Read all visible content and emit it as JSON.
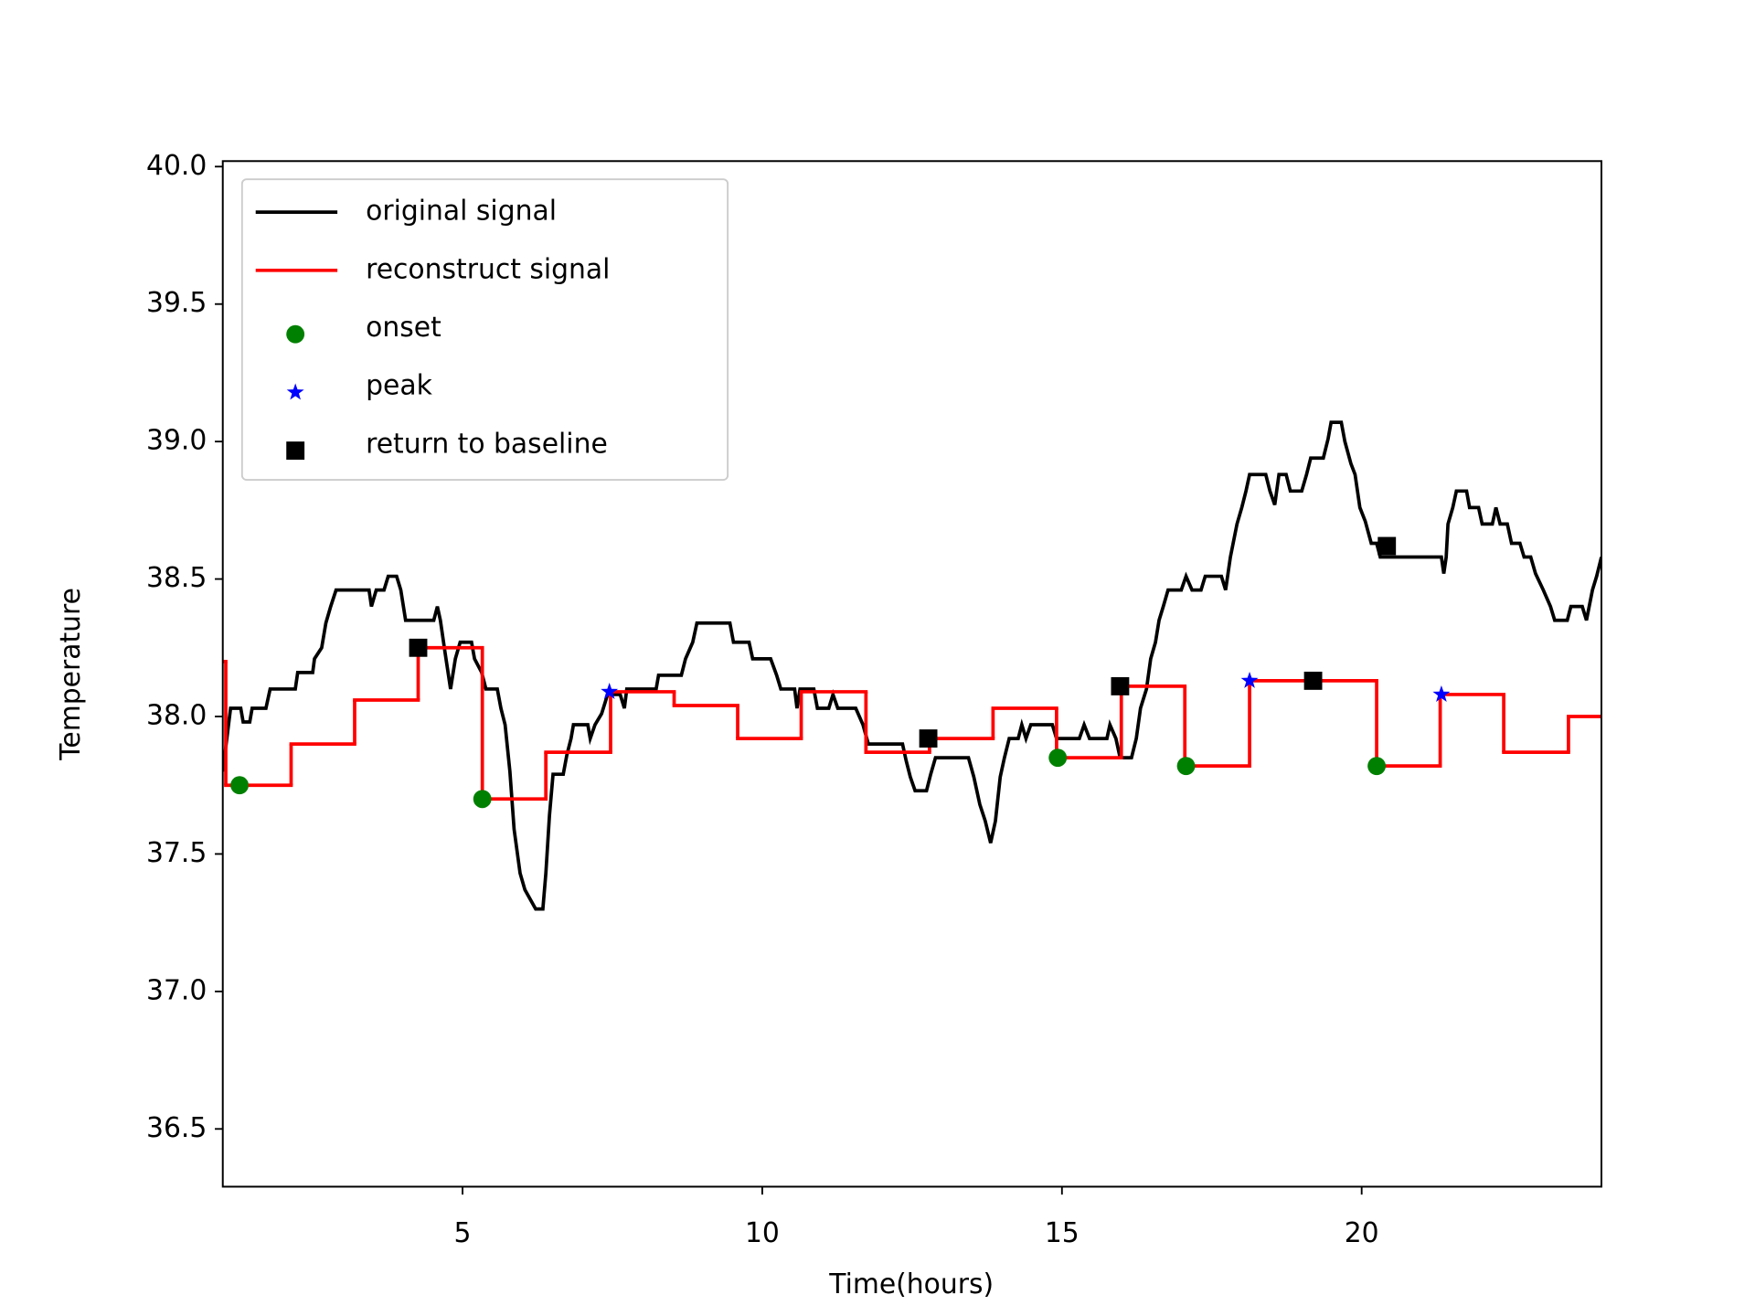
{
  "chart_data": {
    "type": "line",
    "x_label": "Time(hours)",
    "y_label": "Temperature",
    "xlim": [
      1,
      24
    ],
    "ylim": [
      36.29,
      40.02
    ],
    "xticks": [
      5,
      10,
      15,
      20
    ],
    "yticks": [
      36.5,
      {
        "value": 37,
        "label": "37.0"
      },
      37.5,
      {
        "value": 38,
        "label": "38.0"
      },
      38.5,
      {
        "value": 39,
        "label": "39.0"
      },
      39.5,
      {
        "value": 40,
        "label": "40.0"
      }
    ],
    "legend": "upper left",
    "series": [
      {
        "name": "original signal",
        "color": "#000000",
        "type": "line",
        "x": [
          1.0,
          1.13,
          1.3,
          1.34,
          1.45,
          1.49,
          1.72,
          1.79,
          2.21,
          2.25,
          2.5,
          2.53,
          2.65,
          2.72,
          2.8,
          2.89,
          3.44,
          3.48,
          3.56,
          3.69,
          3.76,
          3.9,
          3.97,
          4.05,
          4.52,
          4.58,
          4.63,
          4.71,
          4.8,
          4.88,
          4.96,
          5.15,
          5.2,
          5.32,
          5.39,
          5.58,
          5.64,
          5.71,
          5.79,
          5.86,
          5.96,
          6.04,
          6.22,
          6.34,
          6.39,
          6.45,
          6.51,
          6.68,
          6.74,
          6.81,
          6.85,
          7.09,
          7.13,
          7.21,
          7.32,
          7.42,
          7.63,
          7.7,
          7.74,
          8.23,
          8.27,
          8.65,
          8.72,
          8.84,
          8.91,
          9.46,
          9.52,
          9.78,
          9.84,
          10.14,
          10.24,
          10.31,
          10.54,
          10.58,
          10.63,
          10.86,
          10.92,
          11.11,
          11.18,
          11.26,
          11.56,
          11.68,
          11.77,
          12.34,
          12.4,
          12.47,
          12.55,
          12.74,
          12.81,
          12.89,
          13.44,
          13.53,
          13.63,
          13.72,
          13.81,
          13.89,
          13.97,
          14.04,
          14.12,
          14.27,
          14.33,
          14.4,
          14.48,
          14.84,
          14.91,
          15.29,
          15.37,
          15.46,
          15.75,
          15.8,
          15.9,
          15.97,
          16.16,
          16.24,
          16.31,
          16.41,
          16.48,
          16.56,
          16.62,
          16.69,
          16.77,
          16.99,
          17.07,
          17.17,
          17.32,
          17.39,
          17.66,
          17.73,
          17.81,
          17.92,
          18.0,
          18.07,
          18.13,
          18.4,
          18.47,
          18.55,
          18.62,
          18.74,
          18.81,
          19.0,
          19.08,
          19.15,
          19.36,
          19.44,
          19.49,
          19.66,
          19.72,
          19.82,
          19.89,
          19.97,
          20.06,
          20.16,
          20.25,
          20.31,
          21.33,
          21.37,
          21.41,
          21.44,
          21.52,
          21.58,
          21.75,
          21.8,
          21.95,
          22.01,
          22.18,
          22.24,
          22.31,
          22.43,
          22.5,
          22.64,
          22.71,
          22.82,
          22.9,
          23.03,
          23.15,
          23.22,
          23.43,
          23.49,
          23.68,
          23.75,
          23.85,
          23.92,
          24.0
        ],
        "values": [
          37.8,
          38.03,
          38.03,
          37.98,
          37.98,
          38.03,
          38.03,
          38.1,
          38.1,
          38.16,
          38.16,
          38.21,
          38.25,
          38.34,
          38.4,
          38.46,
          38.46,
          38.4,
          38.46,
          38.46,
          38.51,
          38.51,
          38.46,
          38.35,
          38.35,
          38.4,
          38.35,
          38.23,
          38.1,
          38.21,
          38.27,
          38.27,
          38.21,
          38.16,
          38.1,
          38.1,
          38.03,
          37.97,
          37.8,
          37.59,
          37.43,
          37.37,
          37.3,
          37.3,
          37.43,
          37.64,
          37.79,
          37.79,
          37.86,
          37.92,
          37.97,
          37.97,
          37.92,
          37.97,
          38.01,
          38.08,
          38.08,
          38.03,
          38.1,
          38.1,
          38.15,
          38.15,
          38.21,
          38.27,
          38.34,
          38.34,
          38.27,
          38.27,
          38.21,
          38.21,
          38.15,
          38.1,
          38.1,
          38.03,
          38.1,
          38.1,
          38.03,
          38.03,
          38.08,
          38.03,
          38.03,
          37.97,
          37.9,
          37.9,
          37.84,
          37.78,
          37.73,
          37.73,
          37.79,
          37.85,
          37.85,
          37.78,
          37.68,
          37.62,
          37.54,
          37.62,
          37.78,
          37.85,
          37.92,
          37.92,
          37.97,
          37.92,
          37.97,
          37.97,
          37.92,
          37.92,
          37.97,
          37.92,
          37.92,
          37.97,
          37.92,
          37.85,
          37.85,
          37.92,
          38.03,
          38.1,
          38.21,
          38.27,
          38.35,
          38.4,
          38.46,
          38.46,
          38.51,
          38.46,
          38.46,
          38.51,
          38.51,
          38.46,
          38.58,
          38.7,
          38.76,
          38.82,
          38.88,
          38.88,
          38.82,
          38.77,
          38.88,
          38.88,
          38.82,
          38.82,
          38.88,
          38.94,
          38.94,
          39.01,
          39.07,
          39.07,
          39.0,
          38.92,
          38.88,
          38.76,
          38.71,
          38.63,
          38.63,
          38.58,
          38.58,
          38.52,
          38.58,
          38.7,
          38.76,
          38.82,
          38.82,
          38.76,
          38.76,
          38.7,
          38.7,
          38.76,
          38.7,
          38.7,
          38.63,
          38.63,
          38.58,
          38.58,
          38.52,
          38.46,
          38.4,
          38.35,
          38.35,
          38.4,
          38.4,
          38.35,
          38.46,
          38.51,
          38.58
        ]
      },
      {
        "name": "reconstruct signal",
        "color": "#ff0000",
        "type": "step",
        "x": [
          1.0,
          1.05,
          2.14,
          3.2,
          4.26,
          5.33,
          6.39,
          7.47,
          8.53,
          9.59,
          10.65,
          11.73,
          12.79,
          13.85,
          14.91,
          15.99,
          17.05,
          18.13,
          20.25,
          21.31,
          22.37,
          23.45,
          24.0
        ],
        "values": [
          38.2,
          37.75,
          37.9,
          38.06,
          38.25,
          37.7,
          37.87,
          38.09,
          38.04,
          37.92,
          38.09,
          37.87,
          37.92,
          38.03,
          37.85,
          38.11,
          37.82,
          38.13,
          37.82,
          38.08,
          37.87,
          38.0,
          38.0
        ]
      },
      {
        "name": "onset",
        "color": "#008000",
        "type": "scatter",
        "marker": "circle",
        "x": [
          1.28,
          5.33,
          14.93,
          17.07,
          20.25
        ],
        "values": [
          37.75,
          37.7,
          37.85,
          37.82,
          37.82
        ]
      },
      {
        "name": "peak",
        "color": "#0000ff",
        "type": "scatter",
        "marker": "star",
        "x": [
          7.45,
          18.13,
          21.33
        ],
        "values": [
          38.09,
          38.13,
          38.08
        ]
      },
      {
        "name": "return to baseline",
        "color": "#000000",
        "type": "scatter",
        "marker": "square",
        "x": [
          4.26,
          12.77,
          15.97,
          19.19,
          20.42
        ],
        "values": [
          38.25,
          37.92,
          38.11,
          38.13,
          38.62
        ]
      }
    ]
  }
}
